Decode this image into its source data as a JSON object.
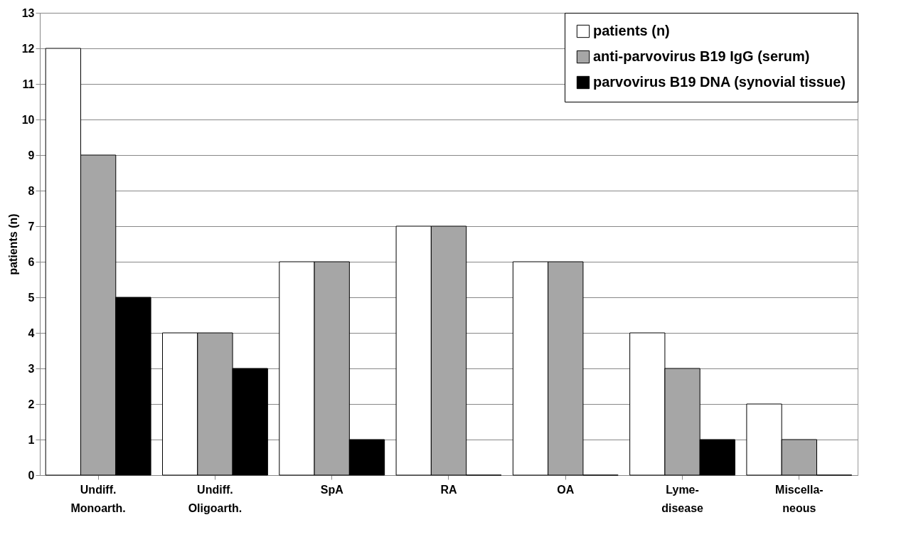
{
  "chart_data": {
    "type": "bar",
    "ylabel": "patients (n)",
    "categories": [
      "Undiff.\nMonoarth.",
      "Undiff.\nOligoarth.",
      "SpA",
      "RA",
      "OA",
      "Lyme-\ndisease",
      "Miscella-\nneous"
    ],
    "series": [
      {
        "name": "patients (n)",
        "color": "#ffffff",
        "values": [
          12,
          4,
          6,
          7,
          6,
          4,
          2
        ]
      },
      {
        "name": "anti-parvovirus B19 IgG (serum)",
        "color": "#a6a6a6",
        "values": [
          9,
          4,
          6,
          7,
          6,
          3,
          1
        ]
      },
      {
        "name": "parvovirus B19 DNA (synovial tissue)",
        "color": "#000000",
        "values": [
          5,
          3,
          1,
          0,
          0,
          1,
          0
        ]
      }
    ],
    "ylim": [
      0,
      13
    ],
    "yticks": [
      0,
      1,
      2,
      3,
      4,
      5,
      6,
      7,
      8,
      9,
      10,
      11,
      12,
      13
    ],
    "grid": "y",
    "legend": "top right"
  }
}
